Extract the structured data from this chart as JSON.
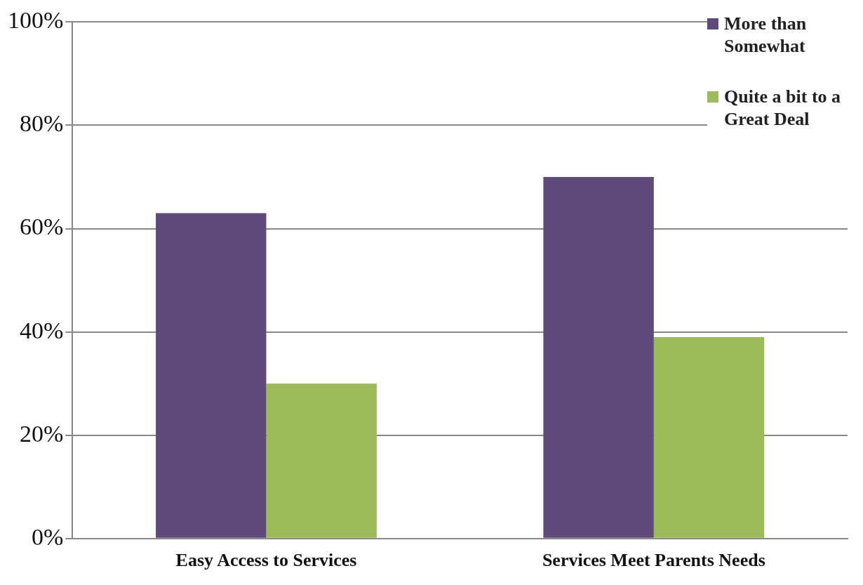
{
  "chart_data": {
    "type": "bar",
    "categories": [
      "Easy Access to Services",
      "Services Meet Parents Needs"
    ],
    "series": [
      {
        "name": "More than Somewhat",
        "color": "#604a7b",
        "values": [
          63,
          70
        ]
      },
      {
        "name": "Quite a bit to a Great Deal",
        "color": "#9bbb59",
        "values": [
          30,
          39
        ]
      }
    ],
    "ylim": [
      0,
      100
    ],
    "yticks": [
      {
        "value": 0,
        "label": "0%"
      },
      {
        "value": 20,
        "label": "20%"
      },
      {
        "value": 40,
        "label": "40%"
      },
      {
        "value": 60,
        "label": "60%"
      },
      {
        "value": 80,
        "label": "80%"
      },
      {
        "value": 100,
        "label": "100%"
      }
    ],
    "grid": "y",
    "legend": "top right"
  }
}
